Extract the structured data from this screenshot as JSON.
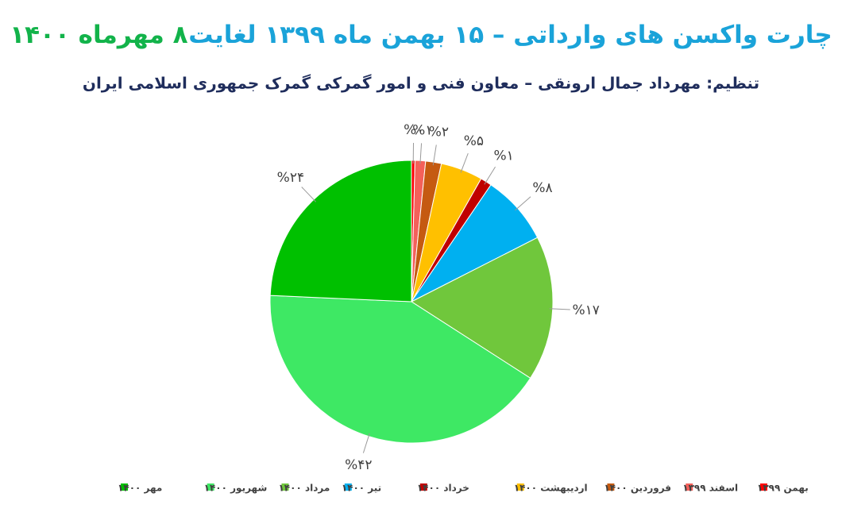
{
  "chart_data": {
    "type": "pie",
    "title": "چارت واکسن های وارداتی – ۱۵ بهمن ماه ۱۳۹۹ لغایت",
    "title_highlight": "۸ مهرماه ۱۴۰۰",
    "subtitle": "تنظیم: مهرداد جمال ارونقی – معاون فنی و امور گمرکی گمرک جمهوری اسلامی ایران",
    "categories": [
      "بهمن ۱۳۹۹",
      "اسفند ۱۳۹۹",
      "فروردین ۱۴۰۰",
      "اردیبهشت ۱۴۰۰",
      "خرداد ۱۴۰۰",
      "تیر ۱۴۰۰",
      "مرداد ۱۴۰۰",
      "شهریور ۱۴۰۰",
      "مهر ۱۴۰۰"
    ],
    "values": [
      0.4,
      1.2,
      1.8,
      4.8,
      1.3,
      8,
      16.6,
      41.6,
      24.3
    ],
    "value_labels": [
      "%۰",
      "%۱",
      "%۲",
      "%۵",
      "%۱",
      "%۸",
      "%۱۷",
      "%۴۲",
      "%۲۴"
    ],
    "colors": [
      "#ff0000",
      "#f4605a",
      "#c55a11",
      "#ffc000",
      "#c00000",
      "#00b0f0",
      "#70c73c",
      "#3ee864",
      "#00c000"
    ]
  }
}
